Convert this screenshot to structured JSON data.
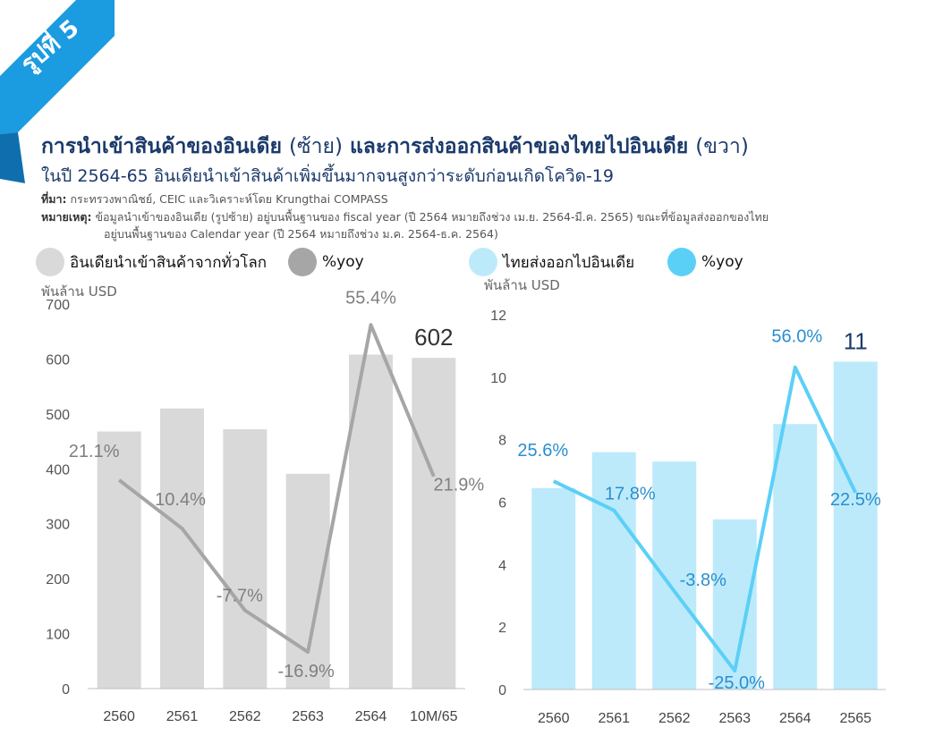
{
  "figure_label": "รูปที่ 5",
  "title_main_1": "การนำเข้าสินค้าของอินเดีย",
  "title_paren_1": "(ซ้าย)",
  "title_main_2": "และการส่งออกสินค้าของไทยไปอินเดีย",
  "title_paren_2": "(ขวา)",
  "subtitle": "ในปี 2564-65 อินเดียนำเข้าสินค้าเพิ่มขึ้นมากจนสูงกว่าระดับก่อนเกิดโควิด-19",
  "source_label": "ที่มา:",
  "source_text": "กระทรวงพาณิชย์, CEIC และวิเคราะห์โดย Krungthai COMPASS",
  "note_label": "หมายเหตุ:",
  "note_line1": "ข้อมูลนำเข้าของอินเดีย (รูปซ้าย) อยู่บนพื้นฐานของ fiscal year (ปี 2564 หมายถึงช่วง เม.ย. 2564-มี.ค. 2565) ขณะที่ข้อมูลส่งออกของไทย",
  "note_line2": "อยู่บนพื้นฐานของ Calendar year (ปี 2564 หมายถึงช่วง ม.ค. 2564-ธ.ค. 2564)",
  "legend": {
    "left_bar": "อินเดียนำเข้าสินค้าจากทั่วโลก",
    "left_line": "%yoy",
    "right_bar": "ไทยส่งออกไปอินเดีย",
    "right_line": "%yoy"
  },
  "colors": {
    "ribbon": "#1b9be0",
    "title": "#1b3a6b",
    "left_bar": "#d9d9d9",
    "left_line": "#a6a6a6",
    "right_bar": "#bdeafb",
    "right_line": "#5bd0f7",
    "right_label": "#2a8ecf"
  },
  "chart_data": [
    {
      "type": "bar",
      "ylabel": "พันล้าน USD",
      "categories": [
        "2560",
        "2561",
        "2562",
        "2563",
        "2564",
        "10M/65"
      ],
      "ylim": [
        0,
        700
      ],
      "yticks": [
        0,
        100,
        200,
        300,
        400,
        500,
        600,
        700
      ],
      "series": [
        {
          "name": "อินเดียนำเข้าสินค้าจากทั่วโลก",
          "kind": "bar",
          "values": [
            468,
            510,
            472,
            391,
            608,
            602
          ]
        },
        {
          "name": "%yoy",
          "kind": "line",
          "values": [
            21.1,
            10.4,
            -7.7,
            -16.9,
            55.4,
            21.9
          ]
        }
      ],
      "bar_value_labels": [
        "",
        "",
        "",
        "",
        "",
        "602"
      ],
      "line_labels": [
        "21.1%",
        "10.4%",
        "-7.7%",
        "-16.9%",
        "55.4%",
        "21.9%"
      ],
      "line_axis": [
        -25,
        60
      ]
    },
    {
      "type": "bar",
      "ylabel": "พันล้าน USD",
      "categories": [
        "2560",
        "2561",
        "2562",
        "2563",
        "2564",
        "2565"
      ],
      "ylim": [
        0,
        12
      ],
      "yticks": [
        0,
        2,
        4,
        6,
        8,
        10,
        12
      ],
      "series": [
        {
          "name": "ไทยส่งออกไปอินเดีย",
          "kind": "bar",
          "values": [
            6.45,
            7.6,
            7.3,
            5.45,
            8.5,
            10.5
          ]
        },
        {
          "name": "%yoy",
          "kind": "line",
          "values": [
            25.6,
            17.8,
            -3.8,
            -25.0,
            56.0,
            22.5
          ]
        }
      ],
      "bar_value_labels": [
        "",
        "",
        "",
        "",
        "",
        "11"
      ],
      "line_labels": [
        "25.6%",
        "17.8%",
        "-3.8%",
        "-25.0%",
        "56.0%",
        "22.5%"
      ],
      "line_axis": [
        -30,
        70
      ]
    }
  ]
}
